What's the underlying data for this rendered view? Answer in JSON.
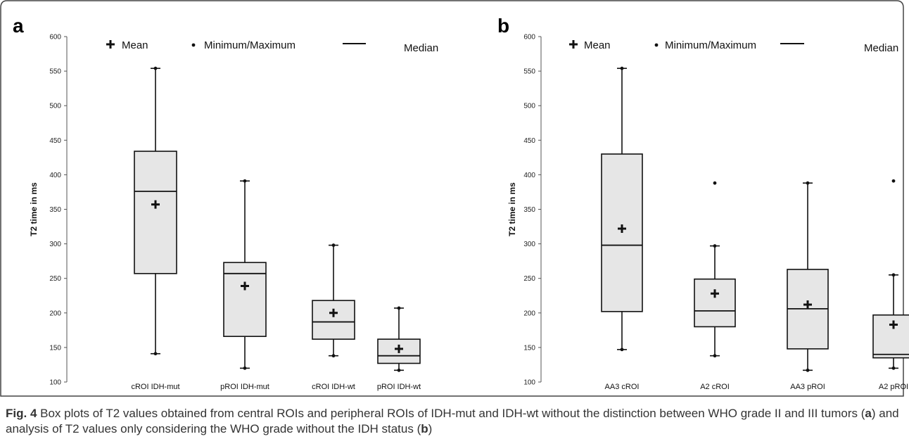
{
  "figure": {
    "caption": {
      "label": "Fig. 4",
      "t1": " Box plots of T2 values obtained from central ROIs and peripheral ROIs of IDH-mut and IDH-wt without the distinction between WHO grade II and III tumors (",
      "ref_a": "a",
      "t2": ") and analysis of T2 values only considering the WHO grade without the IDH status (",
      "ref_b": "b",
      "t3": ")"
    }
  },
  "colors": {
    "box_fill": "#e6e6e6",
    "stroke": "#111111",
    "frame": "#444444"
  },
  "chart_data": [
    {
      "panel": "a",
      "type": "box",
      "ylabel": "T2 time in ms",
      "ylim": [
        100,
        600
      ],
      "yticks": [
        100,
        150,
        200,
        250,
        300,
        350,
        400,
        450,
        500,
        550,
        600
      ],
      "legend": {
        "mean": "Mean",
        "minmax": "Minimum/Maximum",
        "median": "Median"
      },
      "categories": [
        "cROI IDH-mut",
        "pROI IDH-mut",
        "cROI IDH-wt",
        "pROI IDH-wt"
      ],
      "boxes": [
        {
          "min": 141,
          "q1": 257,
          "median": 376,
          "q3": 434,
          "max": 554,
          "mean": 357,
          "outliers": []
        },
        {
          "min": 120,
          "q1": 166,
          "median": 257,
          "q3": 273,
          "max": 391,
          "mean": 239,
          "outliers": []
        },
        {
          "min": 138,
          "q1": 162,
          "median": 187,
          "q3": 218,
          "max": 298,
          "mean": 200,
          "outliers": []
        },
        {
          "min": 117,
          "q1": 127,
          "median": 138,
          "q3": 162,
          "max": 207,
          "mean": 148,
          "outliers": []
        }
      ]
    },
    {
      "panel": "b",
      "type": "box",
      "ylabel": "T2 time in ms",
      "ylim": [
        100,
        600
      ],
      "yticks": [
        100,
        150,
        200,
        250,
        300,
        350,
        400,
        450,
        500,
        550,
        600
      ],
      "legend": {
        "mean": "Mean",
        "minmax": "Minimum/Maximum",
        "median": "Median"
      },
      "categories": [
        "AA3 cROI",
        "A2 cROI",
        "AA3 pROI",
        "A2 pROI"
      ],
      "boxes": [
        {
          "min": 147,
          "q1": 202,
          "median": 298,
          "q3": 430,
          "max": 554,
          "mean": 322,
          "outliers": []
        },
        {
          "min": 138,
          "q1": 180,
          "median": 203,
          "q3": 249,
          "max": 297,
          "mean": 228,
          "outliers": [
            388
          ]
        },
        {
          "min": 117,
          "q1": 148,
          "median": 206,
          "q3": 263,
          "max": 388,
          "mean": 212,
          "outliers": []
        },
        {
          "min": 120,
          "q1": 135,
          "median": 140,
          "q3": 197,
          "max": 255,
          "mean": 183,
          "outliers": [
            391
          ]
        }
      ]
    }
  ]
}
